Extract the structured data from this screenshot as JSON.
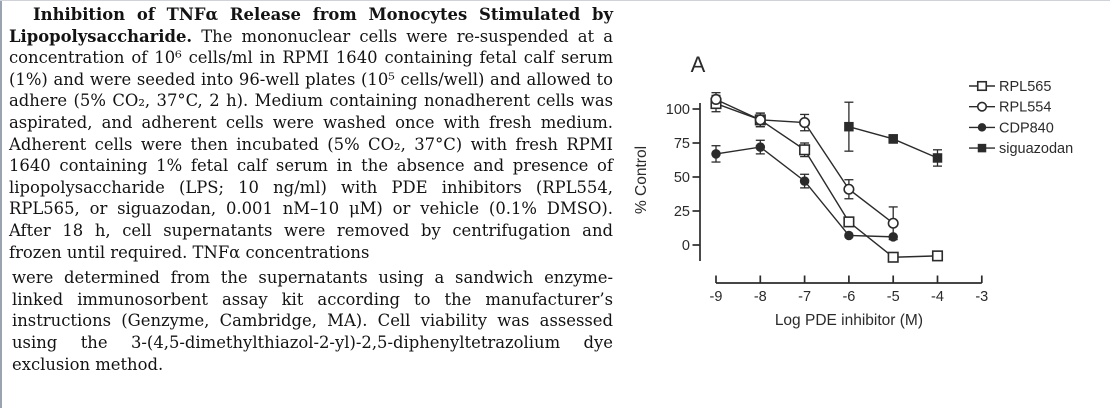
{
  "caption": {
    "title": "Inhibition of TNFα Release from Monocytes Stimulated by Lipopolysaccharide.",
    "body1": " The mononuclear cells were re-suspended at a concentration of 10⁶ cells/ml in RPMI 1640 containing fetal calf serum (1%) and were seeded into 96-well plates (10⁵ cells/well) and allowed to adhere (5% CO₂, 37°C, 2 h). Medium containing nonadherent cells was aspirated, and adherent cells were washed once with fresh medium. Adherent cells were then incubated (5% CO₂, 37°C) with fresh RPMI 1640 containing 1% fetal calf serum in the absence and presence of lipopolysaccharide (LPS; 10 ng/ml) with PDE inhibitors (RPL554, RPL565, or siguazodan, 0.001 nM–10 μM) or vehicle (0.1% DMSO). After 18 h, cell supernatants were removed by centrifugation and frozen until required. TNFα concentrations",
    "body2": "were determined from the supernatants using a sandwich enzyme-linked immunosorbent assay kit according to the manufacturer’s instructions (Genzyme, Cambridge, MA). Cell viability was assessed using the 3-(4,5-dimethylthiazol-2-yl)-2,5-diphenyltetrazolium dye exclusion method."
  },
  "chart_data": {
    "type": "line",
    "panel_label": "A",
    "title": "",
    "xlabel": "Log PDE inhibitor  (M)",
    "ylabel": "% Control",
    "xlim": [
      -9,
      -3
    ],
    "ylim": [
      -15,
      112
    ],
    "x_ticks": [
      -9,
      -8,
      -7,
      -6,
      -5,
      -4,
      -3
    ],
    "y_ticks": [
      0,
      25,
      50,
      75,
      100
    ],
    "grid": false,
    "legend_position": "top-right",
    "line_color": "#2b2b2b",
    "series": [
      {
        "name": "RPL565",
        "marker": "open-square",
        "x": [
          -9,
          -8,
          -7,
          -6,
          -5,
          -4
        ],
        "y": [
          104,
          92,
          70,
          17,
          -9,
          -8
        ],
        "yerr": [
          6,
          5,
          5,
          3,
          0,
          0
        ]
      },
      {
        "name": "RPL554",
        "marker": "open-circle",
        "x": [
          -9,
          -8,
          -7,
          -6,
          -5
        ],
        "y": [
          107,
          92,
          90,
          41,
          16
        ],
        "yerr": [
          5,
          5,
          6,
          7,
          12
        ]
      },
      {
        "name": "CDP840",
        "marker": "filled-circle",
        "x": [
          -9,
          -8,
          -7,
          -6,
          -5
        ],
        "y": [
          67,
          72,
          47,
          7,
          6
        ],
        "yerr": [
          6,
          5,
          5,
          0,
          0
        ]
      },
      {
        "name": "siguazodan",
        "marker": "filled-square",
        "x": [
          -6,
          -5,
          -4
        ],
        "y": [
          87,
          78,
          64
        ],
        "yerr": [
          18,
          3,
          6
        ]
      }
    ]
  }
}
